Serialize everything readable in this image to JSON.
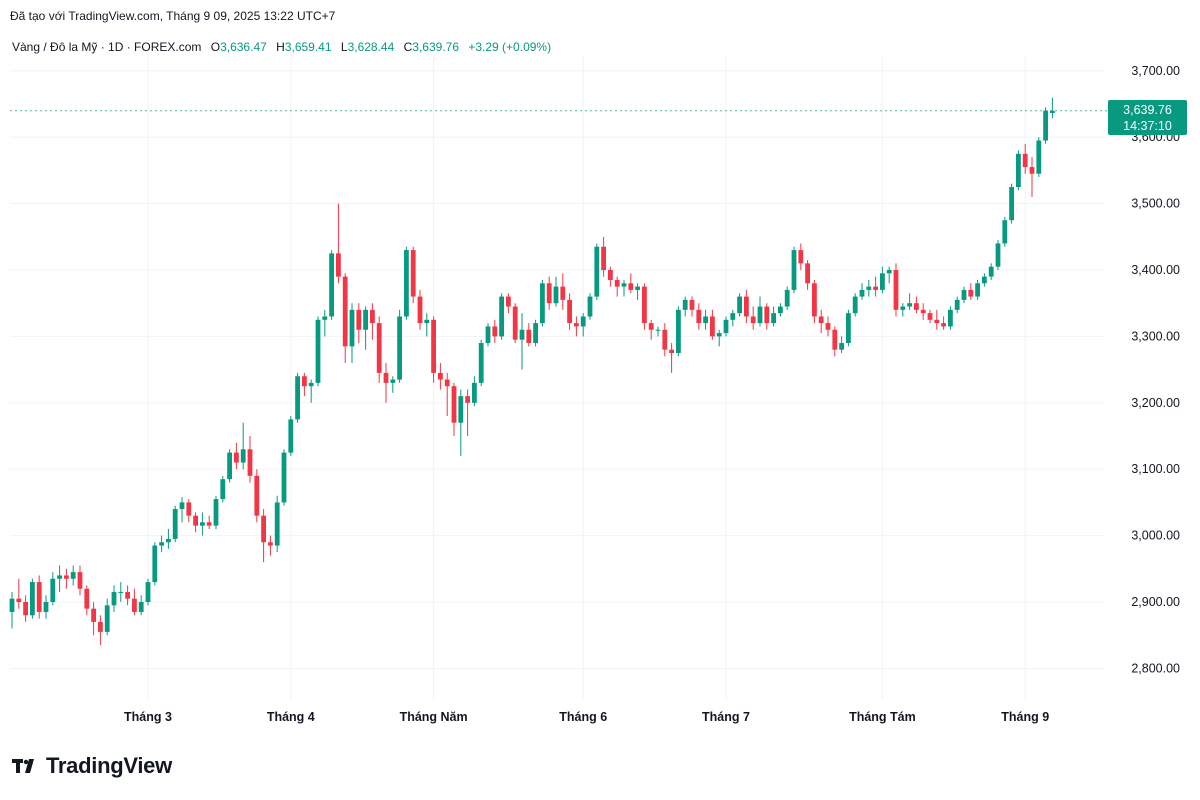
{
  "header": {
    "created_text": "Đã tạo với TradingView.com, Tháng 9 09, 2025 13:22 UTC+7",
    "symbol": "Vàng / Đô la Mỹ · 1D · FOREX.com",
    "open_label": "O",
    "open": "3,636.47",
    "high_label": "H",
    "high": "3,659.41",
    "low_label": "L",
    "low": "3,628.44",
    "close_label": "C",
    "close": "3,639.76",
    "change": "+3.29 (+0.09%)"
  },
  "price_tag": {
    "price": "3,639.76",
    "countdown": "14:37:10"
  },
  "brand": {
    "name": "TradingView"
  },
  "colors": {
    "up": "#089981",
    "down": "#f23645",
    "grid": "#f0f3fa",
    "last_line": "#089981"
  },
  "chart_data": {
    "type": "candlestick",
    "ylim": [
      2700,
      3720
    ],
    "yticks": [
      {
        "value": 2800,
        "label": "2,800.00"
      },
      {
        "value": 2900,
        "label": "2,900.00"
      },
      {
        "value": 3000,
        "label": "3,000.00"
      },
      {
        "value": 3100,
        "label": "3,100.00"
      },
      {
        "value": 3200,
        "label": "3,200.00"
      },
      {
        "value": 3300,
        "label": "3,300.00"
      },
      {
        "value": 3400,
        "label": "3,400.00"
      },
      {
        "value": 3500,
        "label": "3,500.00"
      },
      {
        "value": 3600,
        "label": "3,600.00"
      },
      {
        "value": 3700,
        "label": "3,700.00"
      }
    ],
    "xticks": [
      {
        "index": 20,
        "label": "Tháng 3"
      },
      {
        "index": 41,
        "label": "Tháng 4"
      },
      {
        "index": 62,
        "label": "Tháng Năm"
      },
      {
        "index": 84,
        "label": "Tháng 6"
      },
      {
        "index": 105,
        "label": "Tháng 7"
      },
      {
        "index": 128,
        "label": "Tháng Tám"
      },
      {
        "index": 149,
        "label": "Tháng 9"
      }
    ],
    "last_price": 3639.76,
    "candles": [
      {
        "o": 2885,
        "h": 2915,
        "l": 2860,
        "c": 2905
      },
      {
        "o": 2905,
        "h": 2935,
        "l": 2890,
        "c": 2900
      },
      {
        "o": 2900,
        "h": 2910,
        "l": 2870,
        "c": 2880
      },
      {
        "o": 2880,
        "h": 2935,
        "l": 2875,
        "c": 2930
      },
      {
        "o": 2930,
        "h": 2940,
        "l": 2875,
        "c": 2885
      },
      {
        "o": 2885,
        "h": 2910,
        "l": 2875,
        "c": 2900
      },
      {
        "o": 2900,
        "h": 2945,
        "l": 2895,
        "c": 2935
      },
      {
        "o": 2935,
        "h": 2955,
        "l": 2915,
        "c": 2940
      },
      {
        "o": 2940,
        "h": 2950,
        "l": 2920,
        "c": 2935
      },
      {
        "o": 2935,
        "h": 2955,
        "l": 2925,
        "c": 2945
      },
      {
        "o": 2945,
        "h": 2955,
        "l": 2910,
        "c": 2920
      },
      {
        "o": 2920,
        "h": 2925,
        "l": 2880,
        "c": 2890
      },
      {
        "o": 2890,
        "h": 2900,
        "l": 2850,
        "c": 2870
      },
      {
        "o": 2870,
        "h": 2880,
        "l": 2835,
        "c": 2855
      },
      {
        "o": 2855,
        "h": 2905,
        "l": 2850,
        "c": 2895
      },
      {
        "o": 2895,
        "h": 2925,
        "l": 2885,
        "c": 2915
      },
      {
        "o": 2915,
        "h": 2930,
        "l": 2900,
        "c": 2915
      },
      {
        "o": 2915,
        "h": 2925,
        "l": 2895,
        "c": 2905
      },
      {
        "o": 2905,
        "h": 2920,
        "l": 2880,
        "c": 2885
      },
      {
        "o": 2885,
        "h": 2910,
        "l": 2880,
        "c": 2900
      },
      {
        "o": 2900,
        "h": 2935,
        "l": 2895,
        "c": 2930
      },
      {
        "o": 2930,
        "h": 2990,
        "l": 2925,
        "c": 2985
      },
      {
        "o": 2985,
        "h": 3000,
        "l": 2975,
        "c": 2990
      },
      {
        "o": 2990,
        "h": 3010,
        "l": 2980,
        "c": 2995
      },
      {
        "o": 2995,
        "h": 3045,
        "l": 2990,
        "c": 3040
      },
      {
        "o": 3040,
        "h": 3058,
        "l": 3020,
        "c": 3050
      },
      {
        "o": 3050,
        "h": 3055,
        "l": 3020,
        "c": 3030
      },
      {
        "o": 3030,
        "h": 3035,
        "l": 3005,
        "c": 3015
      },
      {
        "o": 3015,
        "h": 3035,
        "l": 3000,
        "c": 3020
      },
      {
        "o": 3020,
        "h": 3030,
        "l": 3010,
        "c": 3015
      },
      {
        "o": 3015,
        "h": 3060,
        "l": 3010,
        "c": 3055
      },
      {
        "o": 3055,
        "h": 3090,
        "l": 3050,
        "c": 3085
      },
      {
        "o": 3085,
        "h": 3130,
        "l": 3080,
        "c": 3125
      },
      {
        "o": 3125,
        "h": 3140,
        "l": 3100,
        "c": 3110
      },
      {
        "o": 3110,
        "h": 3170,
        "l": 3100,
        "c": 3130
      },
      {
        "o": 3130,
        "h": 3150,
        "l": 3080,
        "c": 3090
      },
      {
        "o": 3090,
        "h": 3100,
        "l": 3020,
        "c": 3030
      },
      {
        "o": 3030,
        "h": 3040,
        "l": 2960,
        "c": 2990
      },
      {
        "o": 2990,
        "h": 3000,
        "l": 2970,
        "c": 2985
      },
      {
        "o": 2985,
        "h": 3060,
        "l": 2975,
        "c": 3050
      },
      {
        "o": 3050,
        "h": 3130,
        "l": 3045,
        "c": 3125
      },
      {
        "o": 3125,
        "h": 3180,
        "l": 3120,
        "c": 3175
      },
      {
        "o": 3175,
        "h": 3245,
        "l": 3170,
        "c": 3240
      },
      {
        "o": 3240,
        "h": 3245,
        "l": 3210,
        "c": 3225
      },
      {
        "o": 3225,
        "h": 3235,
        "l": 3200,
        "c": 3230
      },
      {
        "o": 3230,
        "h": 3330,
        "l": 3225,
        "c": 3325
      },
      {
        "o": 3325,
        "h": 3340,
        "l": 3300,
        "c": 3330
      },
      {
        "o": 3330,
        "h": 3430,
        "l": 3325,
        "c": 3425
      },
      {
        "o": 3425,
        "h": 3500,
        "l": 3380,
        "c": 3390
      },
      {
        "o": 3390,
        "h": 3395,
        "l": 3260,
        "c": 3285
      },
      {
        "o": 3285,
        "h": 3350,
        "l": 3260,
        "c": 3340
      },
      {
        "o": 3340,
        "h": 3350,
        "l": 3290,
        "c": 3310
      },
      {
        "o": 3310,
        "h": 3345,
        "l": 3280,
        "c": 3340
      },
      {
        "o": 3340,
        "h": 3350,
        "l": 3295,
        "c": 3320
      },
      {
        "o": 3320,
        "h": 3330,
        "l": 3230,
        "c": 3245
      },
      {
        "o": 3245,
        "h": 3260,
        "l": 3200,
        "c": 3230
      },
      {
        "o": 3230,
        "h": 3240,
        "l": 3215,
        "c": 3235
      },
      {
        "o": 3235,
        "h": 3340,
        "l": 3230,
        "c": 3330
      },
      {
        "o": 3330,
        "h": 3435,
        "l": 3325,
        "c": 3430
      },
      {
        "o": 3430,
        "h": 3435,
        "l": 3350,
        "c": 3360
      },
      {
        "o": 3360,
        "h": 3370,
        "l": 3310,
        "c": 3320
      },
      {
        "o": 3320,
        "h": 3335,
        "l": 3300,
        "c": 3325
      },
      {
        "o": 3325,
        "h": 3330,
        "l": 3230,
        "c": 3245
      },
      {
        "o": 3245,
        "h": 3260,
        "l": 3220,
        "c": 3235
      },
      {
        "o": 3235,
        "h": 3245,
        "l": 3180,
        "c": 3225
      },
      {
        "o": 3225,
        "h": 3230,
        "l": 3150,
        "c": 3170
      },
      {
        "o": 3170,
        "h": 3220,
        "l": 3120,
        "c": 3210
      },
      {
        "o": 3210,
        "h": 3220,
        "l": 3150,
        "c": 3200
      },
      {
        "o": 3200,
        "h": 3240,
        "l": 3195,
        "c": 3230
      },
      {
        "o": 3230,
        "h": 3295,
        "l": 3225,
        "c": 3290
      },
      {
        "o": 3290,
        "h": 3320,
        "l": 3285,
        "c": 3315
      },
      {
        "o": 3315,
        "h": 3325,
        "l": 3290,
        "c": 3300
      },
      {
        "o": 3300,
        "h": 3365,
        "l": 3295,
        "c": 3360
      },
      {
        "o": 3360,
        "h": 3365,
        "l": 3335,
        "c": 3345
      },
      {
        "o": 3345,
        "h": 3350,
        "l": 3290,
        "c": 3295
      },
      {
        "o": 3295,
        "h": 3335,
        "l": 3250,
        "c": 3310
      },
      {
        "o": 3310,
        "h": 3320,
        "l": 3285,
        "c": 3290
      },
      {
        "o": 3290,
        "h": 3325,
        "l": 3285,
        "c": 3320
      },
      {
        "o": 3320,
        "h": 3385,
        "l": 3315,
        "c": 3380
      },
      {
        "o": 3380,
        "h": 3390,
        "l": 3340,
        "c": 3350
      },
      {
        "o": 3350,
        "h": 3390,
        "l": 3345,
        "c": 3375
      },
      {
        "o": 3375,
        "h": 3395,
        "l": 3340,
        "c": 3355
      },
      {
        "o": 3355,
        "h": 3365,
        "l": 3310,
        "c": 3320
      },
      {
        "o": 3320,
        "h": 3330,
        "l": 3300,
        "c": 3315
      },
      {
        "o": 3315,
        "h": 3335,
        "l": 3300,
        "c": 3330
      },
      {
        "o": 3330,
        "h": 3365,
        "l": 3325,
        "c": 3360
      },
      {
        "o": 3360,
        "h": 3440,
        "l": 3355,
        "c": 3435
      },
      {
        "o": 3435,
        "h": 3450,
        "l": 3390,
        "c": 3400
      },
      {
        "o": 3400,
        "h": 3405,
        "l": 3375,
        "c": 3385
      },
      {
        "o": 3385,
        "h": 3390,
        "l": 3360,
        "c": 3375
      },
      {
        "o": 3375,
        "h": 3385,
        "l": 3360,
        "c": 3380
      },
      {
        "o": 3380,
        "h": 3395,
        "l": 3365,
        "c": 3370
      },
      {
        "o": 3370,
        "h": 3380,
        "l": 3355,
        "c": 3375
      },
      {
        "o": 3375,
        "h": 3380,
        "l": 3310,
        "c": 3320
      },
      {
        "o": 3320,
        "h": 3325,
        "l": 3295,
        "c": 3310
      },
      {
        "o": 3310,
        "h": 3315,
        "l": 3300,
        "c": 3310
      },
      {
        "o": 3310,
        "h": 3320,
        "l": 3270,
        "c": 3280
      },
      {
        "o": 3280,
        "h": 3290,
        "l": 3245,
        "c": 3275
      },
      {
        "o": 3275,
        "h": 3345,
        "l": 3270,
        "c": 3340
      },
      {
        "o": 3340,
        "h": 3360,
        "l": 3330,
        "c": 3355
      },
      {
        "o": 3355,
        "h": 3360,
        "l": 3330,
        "c": 3340
      },
      {
        "o": 3340,
        "h": 3350,
        "l": 3310,
        "c": 3320
      },
      {
        "o": 3320,
        "h": 3340,
        "l": 3310,
        "c": 3330
      },
      {
        "o": 3330,
        "h": 3340,
        "l": 3295,
        "c": 3300
      },
      {
        "o": 3300,
        "h": 3310,
        "l": 3285,
        "c": 3305
      },
      {
        "o": 3305,
        "h": 3330,
        "l": 3300,
        "c": 3325
      },
      {
        "o": 3325,
        "h": 3340,
        "l": 3315,
        "c": 3335
      },
      {
        "o": 3335,
        "h": 3365,
        "l": 3330,
        "c": 3360
      },
      {
        "o": 3360,
        "h": 3370,
        "l": 3320,
        "c": 3330
      },
      {
        "o": 3330,
        "h": 3345,
        "l": 3310,
        "c": 3320
      },
      {
        "o": 3320,
        "h": 3360,
        "l": 3315,
        "c": 3345
      },
      {
        "o": 3345,
        "h": 3350,
        "l": 3310,
        "c": 3320
      },
      {
        "o": 3320,
        "h": 3345,
        "l": 3315,
        "c": 3335
      },
      {
        "o": 3335,
        "h": 3350,
        "l": 3330,
        "c": 3345
      },
      {
        "o": 3345,
        "h": 3375,
        "l": 3340,
        "c": 3370
      },
      {
        "o": 3370,
        "h": 3435,
        "l": 3365,
        "c": 3430
      },
      {
        "o": 3430,
        "h": 3440,
        "l": 3400,
        "c": 3410
      },
      {
        "o": 3410,
        "h": 3415,
        "l": 3370,
        "c": 3380
      },
      {
        "o": 3380,
        "h": 3385,
        "l": 3320,
        "c": 3330
      },
      {
        "o": 3330,
        "h": 3340,
        "l": 3305,
        "c": 3320
      },
      {
        "o": 3320,
        "h": 3330,
        "l": 3300,
        "c": 3310
      },
      {
        "o": 3310,
        "h": 3315,
        "l": 3270,
        "c": 3280
      },
      {
        "o": 3280,
        "h": 3300,
        "l": 3275,
        "c": 3290
      },
      {
        "o": 3290,
        "h": 3340,
        "l": 3285,
        "c": 3335
      },
      {
        "o": 3335,
        "h": 3365,
        "l": 3330,
        "c": 3360
      },
      {
        "o": 3360,
        "h": 3380,
        "l": 3355,
        "c": 3370
      },
      {
        "o": 3370,
        "h": 3385,
        "l": 3360,
        "c": 3375
      },
      {
        "o": 3375,
        "h": 3390,
        "l": 3360,
        "c": 3370
      },
      {
        "o": 3370,
        "h": 3405,
        "l": 3365,
        "c": 3395
      },
      {
        "o": 3395,
        "h": 3405,
        "l": 3380,
        "c": 3400
      },
      {
        "o": 3400,
        "h": 3410,
        "l": 3330,
        "c": 3340
      },
      {
        "o": 3340,
        "h": 3350,
        "l": 3330,
        "c": 3345
      },
      {
        "o": 3345,
        "h": 3365,
        "l": 3340,
        "c": 3350
      },
      {
        "o": 3350,
        "h": 3360,
        "l": 3335,
        "c": 3340
      },
      {
        "o": 3340,
        "h": 3350,
        "l": 3325,
        "c": 3335
      },
      {
        "o": 3335,
        "h": 3340,
        "l": 3320,
        "c": 3325
      },
      {
        "o": 3325,
        "h": 3340,
        "l": 3310,
        "c": 3320
      },
      {
        "o": 3320,
        "h": 3330,
        "l": 3310,
        "c": 3315
      },
      {
        "o": 3315,
        "h": 3345,
        "l": 3310,
        "c": 3340
      },
      {
        "o": 3340,
        "h": 3360,
        "l": 3335,
        "c": 3355
      },
      {
        "o": 3355,
        "h": 3375,
        "l": 3350,
        "c": 3370
      },
      {
        "o": 3370,
        "h": 3380,
        "l": 3355,
        "c": 3360
      },
      {
        "o": 3360,
        "h": 3385,
        "l": 3355,
        "c": 3380
      },
      {
        "o": 3380,
        "h": 3395,
        "l": 3375,
        "c": 3390
      },
      {
        "o": 3390,
        "h": 3410,
        "l": 3385,
        "c": 3405
      },
      {
        "o": 3405,
        "h": 3445,
        "l": 3400,
        "c": 3440
      },
      {
        "o": 3440,
        "h": 3480,
        "l": 3435,
        "c": 3475
      },
      {
        "o": 3475,
        "h": 3530,
        "l": 3470,
        "c": 3525
      },
      {
        "o": 3525,
        "h": 3580,
        "l": 3520,
        "c": 3575
      },
      {
        "o": 3575,
        "h": 3590,
        "l": 3545,
        "c": 3555
      },
      {
        "o": 3555,
        "h": 3570,
        "l": 3510,
        "c": 3545
      },
      {
        "o": 3545,
        "h": 3600,
        "l": 3540,
        "c": 3595
      },
      {
        "o": 3595,
        "h": 3645,
        "l": 3590,
        "c": 3640
      },
      {
        "o": 3636.47,
        "h": 3659.41,
        "l": 3628.44,
        "c": 3639.76
      }
    ]
  }
}
